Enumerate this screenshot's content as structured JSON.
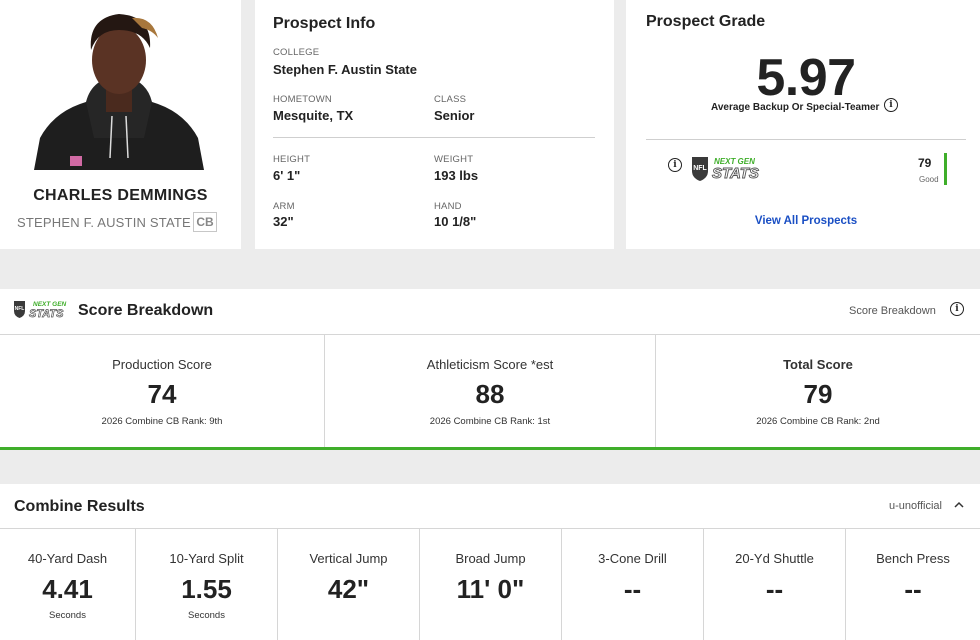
{
  "player": {
    "name": "CHARLES DEMMINGS",
    "school": "STEPHEN F. AUSTIN STATE",
    "position": "CB"
  },
  "prospect_info": {
    "title": "Prospect Info",
    "college_label": "COLLEGE",
    "college": "Stephen F. Austin State",
    "hometown_label": "HOMETOWN",
    "hometown": "Mesquite, TX",
    "class_label": "CLASS",
    "class": "Senior",
    "height_label": "HEIGHT",
    "height": "6' 1\"",
    "weight_label": "WEIGHT",
    "weight": "193 lbs",
    "arm_label": "ARM",
    "arm": "32\"",
    "hand_label": "HAND",
    "hand": "10 1/8\""
  },
  "prospect_grade": {
    "title": "Prospect Grade",
    "grade": "5.97",
    "description": "Average Backup Or Special-Teamer",
    "ngs_logo_top": "NEXT GEN",
    "ngs_logo_bottom": "STATS",
    "ngs_score": "79",
    "ngs_tier": "Good",
    "ngs_score_fraction": 0.79,
    "view_all": "View All Prospects"
  },
  "score_breakdown": {
    "logo_top": "NEXT GEN",
    "logo_bottom": "STATS",
    "title": "Score Breakdown",
    "right_label": "Score Breakdown",
    "scores": [
      {
        "label": "Production Score",
        "value": "74",
        "rank": "2026 Combine CB Rank: 9th"
      },
      {
        "label": "Athleticism Score *est",
        "value": "88",
        "rank": "2026 Combine CB Rank: 1st"
      },
      {
        "label": "Total Score",
        "value": "79",
        "rank": "2026 Combine CB Rank: 2nd"
      }
    ]
  },
  "combine_results": {
    "title": "Combine Results",
    "right_label": "u-unofficial",
    "drills": [
      {
        "label": "40-Yard Dash",
        "value": "4.41",
        "unit": "Seconds"
      },
      {
        "label": "10-Yard Split",
        "value": "1.55",
        "unit": "Seconds"
      },
      {
        "label": "Vertical Jump",
        "value": "42\"",
        "unit": ""
      },
      {
        "label": "Broad Jump",
        "value": "11' 0\"",
        "unit": ""
      },
      {
        "label": "3-Cone Drill",
        "value": "--",
        "unit": ""
      },
      {
        "label": "20-Yd Shuttle",
        "value": "--",
        "unit": ""
      },
      {
        "label": "Bench Press",
        "value": "--",
        "unit": ""
      }
    ]
  },
  "colors": {
    "accent_green": "#3fae2a",
    "link_blue": "#1a4fc4",
    "page_bg": "#ececec"
  }
}
